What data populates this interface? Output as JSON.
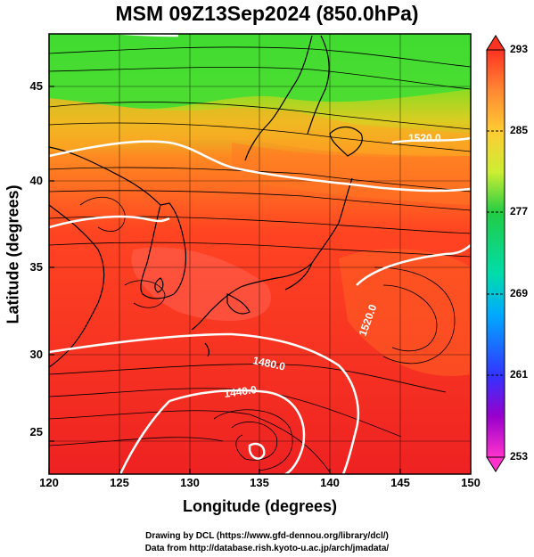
{
  "title": "MSM 09Z13Sep2024 (850.0hPa)",
  "x_axis": {
    "title": "Longitude (degrees)",
    "ticks": [
      "120",
      "125",
      "130",
      "135",
      "140",
      "145",
      "150"
    ]
  },
  "y_axis": {
    "title": "Latitude  (degrees)",
    "ticks": [
      "45",
      "40",
      "35",
      "30",
      "25"
    ]
  },
  "colorbar": {
    "ticks": [
      "293",
      "285",
      "277",
      "269",
      "261",
      "253"
    ],
    "range": [
      253,
      293
    ],
    "colors": [
      "#ff33cc",
      "#9900cc",
      "#3333ff",
      "#00aaff",
      "#00ddaa",
      "#00cc44",
      "#66dd22",
      "#ccee33",
      "#ffcc33",
      "#ff8833",
      "#ff3322"
    ]
  },
  "contour_labels": [
    "1520.0",
    "1520.0",
    "1480.0",
    "1440.0"
  ],
  "credits": {
    "line1": "Drawing by DCL (https://www.gfd-dennou.org/library/dcl/)",
    "line2": "Data from http://database.rish.kyoto-u.ac.jp/arch/jmadata/"
  },
  "map_extent": {
    "lon": [
      120,
      150
    ],
    "lat": [
      22.5,
      47.5
    ]
  }
}
